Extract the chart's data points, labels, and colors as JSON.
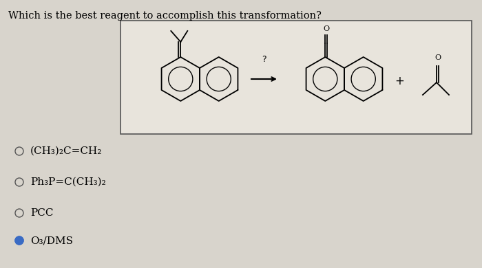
{
  "title": "Which is the best reagent to accomplish this transformation?",
  "title_fontsize": 10.5,
  "background_color": "#d8d4cc",
  "box_facecolor": "#e8e4dc",
  "box_edgecolor": "#555555",
  "options": [
    "(CH₃)₂C=CH₂",
    "Ph₃P=C(CH₃)₂",
    "PCC",
    "O₃/DMS"
  ],
  "selected_option": 3,
  "option_fontsize": 11,
  "circle_color_unselected": "#555555",
  "circle_color_selected": "#3a6bc4"
}
